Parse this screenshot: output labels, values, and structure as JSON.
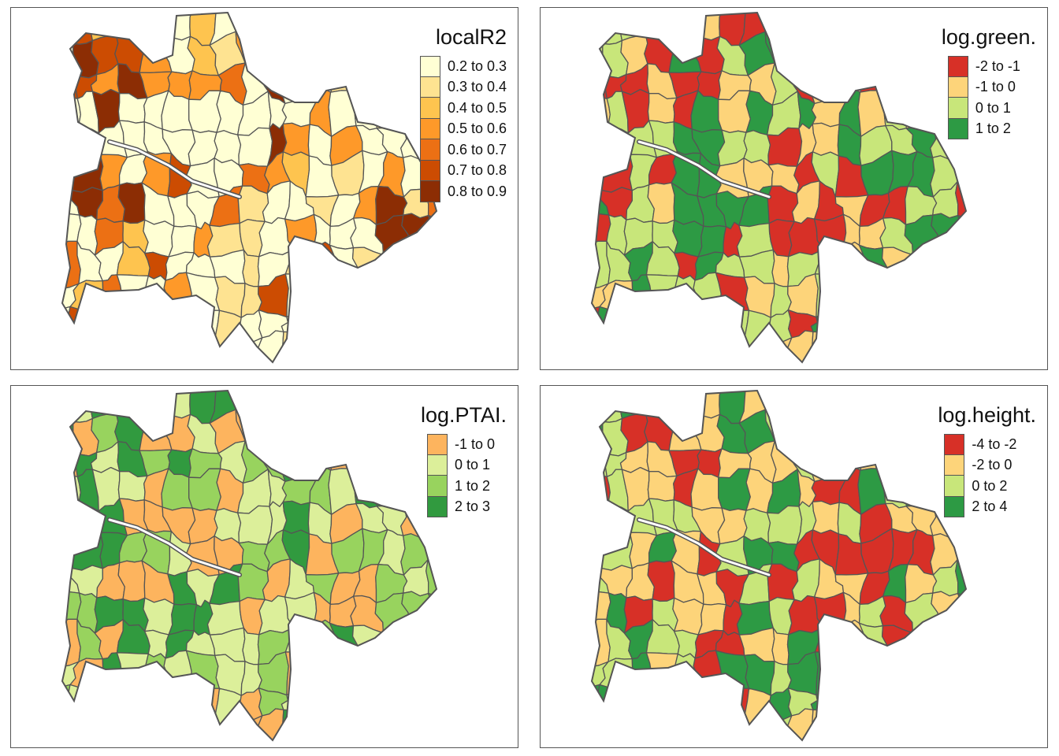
{
  "panels": [
    {
      "title": "localR2",
      "legend": [
        {
          "label": "0.2 to 0.3",
          "color": "#ffffd4"
        },
        {
          "label": "0.3 to 0.4",
          "color": "#fee391"
        },
        {
          "label": "0.4 to 0.5",
          "color": "#fec44f"
        },
        {
          "label": "0.5 to 0.6",
          "color": "#fe9929"
        },
        {
          "label": "0.6 to 0.7",
          "color": "#ec7014"
        },
        {
          "label": "0.7 to 0.8",
          "color": "#cc4c02"
        },
        {
          "label": "0.8 to 0.9",
          "color": "#8c2d04"
        }
      ],
      "cells": [
        "ffcbh3c777hhh6743",
        "hgffd5cbdh777hbdg",
        "ffdgddde7gh5bacdd",
        "h5ga66566h7d8ab5b",
        "h6hhh667hgd5daa66",
        "hgd6dfhhedc5b5dhh",
        "6geg666eb5ab7dgbe",
        "h6ec55dbb5d64aggg",
        "ea6cf6h6babfabh3c",
        "7ce5hd6bbf6g6bcdb",
        "6fg6gb5b4aa5ghg7h",
        "6cbbd76575bcaahgc"
      ]
    },
    {
      "title": "log.green.",
      "legend": [
        {
          "label": "-2 to -1",
          "color": "#d73027"
        },
        {
          "label": "-1 to 0",
          "color": "#fdd47a"
        },
        {
          "label": "0 to 1",
          "color": "#c8e67a"
        },
        {
          "label": "1 to 2",
          "color": "#2d9a44"
        }
      ],
      "cells": [
        "eccahfeaghhhebeag",
        "gcfadagdddhfhaagf",
        "eaafaebbgafbeecae",
        "bgafehfdchbhbgbfg",
        "fbcgddggebbhgchgg",
        "eacahhfffegahdhge",
        "hagfddddabebaagge",
        "egcgddeceeefbchhh",
        "ccdcahggbggbhfhce",
        "ffdcccafcbcaagggf",
        "edcccfcccedbgfghf",
        "egaeddccbbbeefaab"
      ]
    },
    {
      "title": "log.PTAI.",
      "legend": [
        {
          "label": "-1 to 0",
          "color": "#fdb45e"
        },
        {
          "label": "0 to 1",
          "color": "#dcef9a"
        },
        {
          "label": "1 to 2",
          "color": "#98d35e"
        },
        {
          "label": "2 to 3",
          "color": "#319a3f"
        }
      ],
      "cells": [
        "dbdbhbdhhhacadahb",
        "hacheafeedgdahbdd",
        "edfdgdgbgcdeeacbc",
        "fhfbecgaffgcbdhfe",
        "dghaaaeffbhbefbeb",
        "bhhgcfaegcdaccbca",
        "fbaaedbdgabgeagfc",
        "cchhbddbafbaeagcc",
        "egehbdffbcfghbfab",
        "fedfgbgfbcebdfhdd",
        "cfbdcdabagbafcecd",
        "gadeecbcaadfbeadd"
      ]
    },
    {
      "title": "log.height.",
      "legend": [
        {
          "label": "-4 to -2",
          "color": "#d73027"
        },
        {
          "label": "-2 to 0",
          "color": "#fdd47a"
        },
        {
          "label": "0 to 2",
          "color": "#c8e67a"
        },
        {
          "label": "2 to 4",
          "color": "#2d9a44"
        }
      ],
      "cells": [
        "bgdhefhfgfhecaefc",
        "hgaefbddgbcbfhgdf",
        "gcbbaebfbgbcfeaac",
        "egbfafhfhbeedghaf",
        "hhgcgbfgcgbcabffd",
        "ecfhbaghdeeeaaafc",
        "gbbefbagecbbedfgh",
        "fdecbfahgaafgegbd",
        "bghcgeabfdebgedah",
        "ggdbgadhcdhadcbfh",
        "hdhcfdafhchghadhe",
        "cagbcabcgbbhgdcbb"
      ]
    }
  ]
}
